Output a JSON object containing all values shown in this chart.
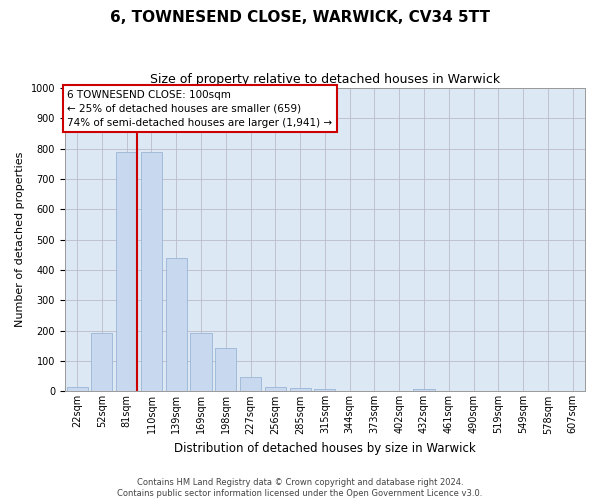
{
  "title": "6, TOWNESEND CLOSE, WARWICK, CV34 5TT",
  "subtitle": "Size of property relative to detached houses in Warwick",
  "xlabel": "Distribution of detached houses by size in Warwick",
  "ylabel": "Number of detached properties",
  "categories": [
    "22sqm",
    "52sqm",
    "81sqm",
    "110sqm",
    "139sqm",
    "169sqm",
    "198sqm",
    "227sqm",
    "256sqm",
    "285sqm",
    "315sqm",
    "344sqm",
    "373sqm",
    "402sqm",
    "432sqm",
    "461sqm",
    "490sqm",
    "519sqm",
    "549sqm",
    "578sqm",
    "607sqm"
  ],
  "values": [
    15,
    193,
    790,
    790,
    440,
    193,
    143,
    48,
    15,
    10,
    8,
    0,
    0,
    0,
    8,
    0,
    0,
    0,
    0,
    0,
    0
  ],
  "bar_color": "#c8d8ee",
  "bar_edgecolor": "#9ab5d5",
  "vline_x": 2.43,
  "property_label": "6 TOWNESEND CLOSE: 100sqm",
  "annotation_line1": "← 25% of detached houses are smaller (659)",
  "annotation_line2": "74% of semi-detached houses are larger (1,941) →",
  "annotation_box_facecolor": "#ffffff",
  "annotation_box_edgecolor": "#cc0000",
  "vline_color": "#cc0000",
  "ylim": [
    0,
    1000
  ],
  "yticks": [
    0,
    100,
    200,
    300,
    400,
    500,
    600,
    700,
    800,
    900,
    1000
  ],
  "grid_color": "#bbbbcc",
  "fig_bg_color": "#ffffff",
  "plot_bg_color": "#dce9f5",
  "footer_line1": "Contains HM Land Registry data © Crown copyright and database right 2024.",
  "footer_line2": "Contains public sector information licensed under the Open Government Licence v3.0.",
  "title_fontsize": 11,
  "subtitle_fontsize": 9,
  "xlabel_fontsize": 8.5,
  "ylabel_fontsize": 8,
  "tick_fontsize": 7,
  "annotation_fontsize": 7.5,
  "footer_fontsize": 6
}
